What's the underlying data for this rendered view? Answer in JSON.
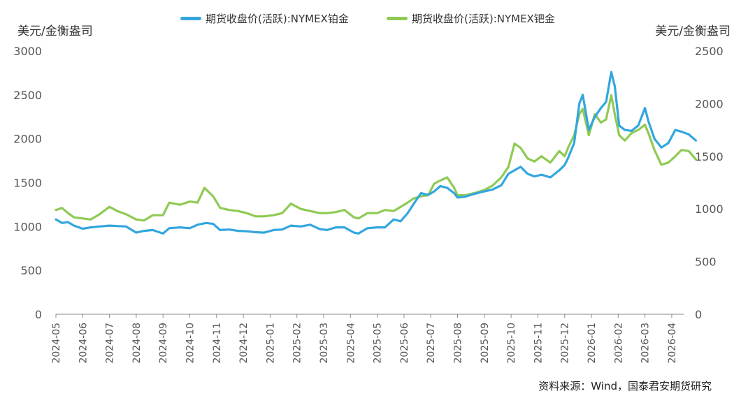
{
  "chart_data": {
    "type": "line",
    "title": "",
    "source": "资料来源：Wind，国泰君安期货研究",
    "y_left": {
      "label": "美元/金衡盎司",
      "min": 0,
      "max": 3000,
      "ticks": [
        "0",
        "500",
        "1000",
        "1500",
        "2000",
        "2500",
        "3000"
      ]
    },
    "y_right": {
      "label": "美元/金衡盎司",
      "min": 0,
      "max": 2500,
      "ticks": [
        "0",
        "500",
        "1000",
        "1500",
        "2000",
        "2500"
      ]
    },
    "x_ticks": [
      "2024-05",
      "2024-06",
      "2024-07",
      "2024-08",
      "2024-09",
      "2024-10",
      "2024-11",
      "2024-12",
      "2025-01",
      "2025-02",
      "2025-03",
      "2025-04",
      "2025-05",
      "2025-06",
      "2025-07",
      "2025-08",
      "2025-09",
      "2025-10",
      "2025-11",
      "2025-12",
      "2026-01",
      "2026-02",
      "2026-03",
      "2026-04"
    ],
    "grid": false,
    "legend_position": "top",
    "series": [
      {
        "name": "期货收盘价(活跃):NYMEX铂金",
        "axis": "left",
        "color": "#33a6df",
        "points": [
          [
            "2024-05-01",
            1080
          ],
          [
            "2024-05-08",
            1040
          ],
          [
            "2024-05-15",
            1050
          ],
          [
            "2024-05-22",
            1010
          ],
          [
            "2024-06-01",
            975
          ],
          [
            "2024-06-10",
            990
          ],
          [
            "2024-06-20",
            1000
          ],
          [
            "2024-07-01",
            1010
          ],
          [
            "2024-07-10",
            1005
          ],
          [
            "2024-07-20",
            1000
          ],
          [
            "2024-08-01",
            930
          ],
          [
            "2024-08-10",
            950
          ],
          [
            "2024-08-20",
            960
          ],
          [
            "2024-09-01",
            920
          ],
          [
            "2024-09-08",
            980
          ],
          [
            "2024-09-20",
            990
          ],
          [
            "2024-10-01",
            980
          ],
          [
            "2024-10-10",
            1020
          ],
          [
            "2024-10-20",
            1040
          ],
          [
            "2024-10-28",
            1030
          ],
          [
            "2024-11-05",
            960
          ],
          [
            "2024-11-15",
            965
          ],
          [
            "2024-11-25",
            950
          ],
          [
            "2024-12-05",
            945
          ],
          [
            "2024-12-15",
            935
          ],
          [
            "2024-12-25",
            930
          ],
          [
            "2025-01-05",
            960
          ],
          [
            "2025-01-15",
            965
          ],
          [
            "2025-01-25",
            1010
          ],
          [
            "2025-02-05",
            1000
          ],
          [
            "2025-02-15",
            1020
          ],
          [
            "2025-02-25",
            970
          ],
          [
            "2025-03-05",
            960
          ],
          [
            "2025-03-15",
            990
          ],
          [
            "2025-03-25",
            990
          ],
          [
            "2025-04-05",
            930
          ],
          [
            "2025-04-10",
            920
          ],
          [
            "2025-04-20",
            980
          ],
          [
            "2025-05-01",
            990
          ],
          [
            "2025-05-10",
            990
          ],
          [
            "2025-05-20",
            1080
          ],
          [
            "2025-05-28",
            1060
          ],
          [
            "2025-06-05",
            1150
          ],
          [
            "2025-06-12",
            1260
          ],
          [
            "2025-06-20",
            1380
          ],
          [
            "2025-06-28",
            1360
          ],
          [
            "2025-07-05",
            1400
          ],
          [
            "2025-07-12",
            1460
          ],
          [
            "2025-07-20",
            1440
          ],
          [
            "2025-07-28",
            1380
          ],
          [
            "2025-08-01",
            1330
          ],
          [
            "2025-08-10",
            1340
          ],
          [
            "2025-08-20",
            1370
          ],
          [
            "2025-09-01",
            1400
          ],
          [
            "2025-09-10",
            1420
          ],
          [
            "2025-09-20",
            1470
          ],
          [
            "2025-09-28",
            1600
          ],
          [
            "2025-10-05",
            1640
          ],
          [
            "2025-10-12",
            1680
          ],
          [
            "2025-10-20",
            1600
          ],
          [
            "2025-10-28",
            1570
          ],
          [
            "2025-11-05",
            1590
          ],
          [
            "2025-11-15",
            1560
          ],
          [
            "2025-11-25",
            1640
          ],
          [
            "2025-12-01",
            1700
          ],
          [
            "2025-12-05",
            1780
          ],
          [
            "2025-12-12",
            1950
          ],
          [
            "2025-12-18",
            2400
          ],
          [
            "2025-12-22",
            2500
          ],
          [
            "2025-12-29",
            2100
          ],
          [
            "2026-01-05",
            2250
          ],
          [
            "2026-01-12",
            2350
          ],
          [
            "2026-01-18",
            2420
          ],
          [
            "2026-01-24",
            2760
          ],
          [
            "2026-01-28",
            2600
          ],
          [
            "2026-02-02",
            2150
          ],
          [
            "2026-02-08",
            2100
          ],
          [
            "2026-02-15",
            2090
          ],
          [
            "2026-02-22",
            2150
          ],
          [
            "2026-03-01",
            2350
          ],
          [
            "2026-03-05",
            2200
          ],
          [
            "2026-03-12",
            2000
          ],
          [
            "2026-03-20",
            1900
          ],
          [
            "2026-03-28",
            1950
          ],
          [
            "2026-04-05",
            2100
          ],
          [
            "2026-04-12",
            2080
          ],
          [
            "2026-04-20",
            2050
          ],
          [
            "2026-04-28",
            1980
          ]
        ]
      },
      {
        "name": "期货收盘价(活跃):NYMEX钯金",
        "axis": "right",
        "color": "#8fca54",
        "points": [
          [
            "2024-05-01",
            990
          ],
          [
            "2024-05-08",
            1010
          ],
          [
            "2024-05-15",
            960
          ],
          [
            "2024-05-22",
            920
          ],
          [
            "2024-06-01",
            910
          ],
          [
            "2024-06-10",
            900
          ],
          [
            "2024-06-20",
            950
          ],
          [
            "2024-07-01",
            1020
          ],
          [
            "2024-07-10",
            980
          ],
          [
            "2024-07-20",
            950
          ],
          [
            "2024-08-01",
            900
          ],
          [
            "2024-08-10",
            890
          ],
          [
            "2024-08-20",
            940
          ],
          [
            "2024-09-01",
            940
          ],
          [
            "2024-09-08",
            1060
          ],
          [
            "2024-09-20",
            1040
          ],
          [
            "2024-10-01",
            1070
          ],
          [
            "2024-10-10",
            1060
          ],
          [
            "2024-10-18",
            1200
          ],
          [
            "2024-10-28",
            1120
          ],
          [
            "2024-11-05",
            1010
          ],
          [
            "2024-11-15",
            990
          ],
          [
            "2024-11-25",
            980
          ],
          [
            "2024-12-05",
            960
          ],
          [
            "2024-12-15",
            930
          ],
          [
            "2024-12-25",
            930
          ],
          [
            "2025-01-05",
            940
          ],
          [
            "2025-01-15",
            960
          ],
          [
            "2025-01-25",
            1050
          ],
          [
            "2025-02-05",
            1000
          ],
          [
            "2025-02-15",
            980
          ],
          [
            "2025-02-25",
            960
          ],
          [
            "2025-03-05",
            960
          ],
          [
            "2025-03-15",
            970
          ],
          [
            "2025-03-25",
            990
          ],
          [
            "2025-04-05",
            920
          ],
          [
            "2025-04-10",
            910
          ],
          [
            "2025-04-20",
            960
          ],
          [
            "2025-05-01",
            960
          ],
          [
            "2025-05-10",
            990
          ],
          [
            "2025-05-20",
            980
          ],
          [
            "2025-05-28",
            1020
          ],
          [
            "2025-06-05",
            1060
          ],
          [
            "2025-06-12",
            1100
          ],
          [
            "2025-06-20",
            1120
          ],
          [
            "2025-06-28",
            1130
          ],
          [
            "2025-07-05",
            1240
          ],
          [
            "2025-07-12",
            1270
          ],
          [
            "2025-07-20",
            1300
          ],
          [
            "2025-07-28",
            1200
          ],
          [
            "2025-08-01",
            1130
          ],
          [
            "2025-08-10",
            1130
          ],
          [
            "2025-08-20",
            1150
          ],
          [
            "2025-09-01",
            1180
          ],
          [
            "2025-09-10",
            1220
          ],
          [
            "2025-09-20",
            1300
          ],
          [
            "2025-09-28",
            1400
          ],
          [
            "2025-10-05",
            1620
          ],
          [
            "2025-10-12",
            1580
          ],
          [
            "2025-10-20",
            1480
          ],
          [
            "2025-10-28",
            1450
          ],
          [
            "2025-11-05",
            1500
          ],
          [
            "2025-11-15",
            1440
          ],
          [
            "2025-11-25",
            1550
          ],
          [
            "2025-12-01",
            1500
          ],
          [
            "2025-12-05",
            1580
          ],
          [
            "2025-12-12",
            1700
          ],
          [
            "2025-12-18",
            1900
          ],
          [
            "2025-12-22",
            1950
          ],
          [
            "2025-12-29",
            1700
          ],
          [
            "2026-01-05",
            1900
          ],
          [
            "2026-01-12",
            1820
          ],
          [
            "2026-01-18",
            1850
          ],
          [
            "2026-01-24",
            2080
          ],
          [
            "2026-01-28",
            1900
          ],
          [
            "2026-02-02",
            1700
          ],
          [
            "2026-02-08",
            1650
          ],
          [
            "2026-02-15",
            1720
          ],
          [
            "2026-02-22",
            1750
          ],
          [
            "2026-03-01",
            1800
          ],
          [
            "2026-03-05",
            1720
          ],
          [
            "2026-03-12",
            1560
          ],
          [
            "2026-03-20",
            1420
          ],
          [
            "2026-03-28",
            1440
          ],
          [
            "2026-04-05",
            1500
          ],
          [
            "2026-04-12",
            1560
          ],
          [
            "2026-04-20",
            1550
          ],
          [
            "2026-04-28",
            1470
          ]
        ]
      }
    ]
  }
}
